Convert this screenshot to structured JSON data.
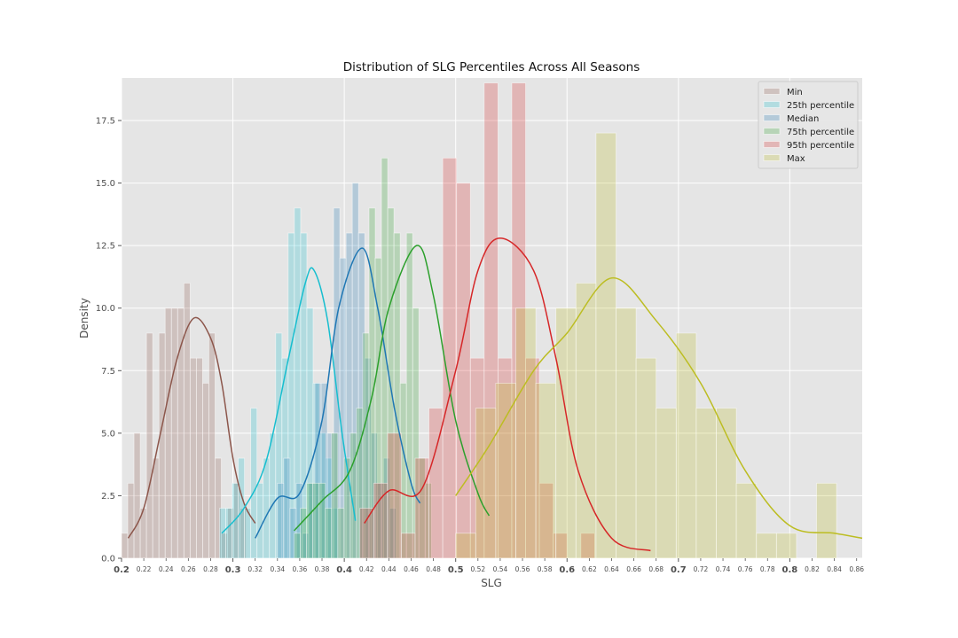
{
  "chart_data": {
    "type": "histogram",
    "title": "Distribution of SLG Percentiles Across All Seasons",
    "xlabel": "SLG",
    "ylabel": "Density",
    "xlim": [
      0.2,
      0.865
    ],
    "ylim": [
      0,
      19.2
    ],
    "grid": true,
    "legend_position": "top-right",
    "major_x_ticks": [
      {
        "value": 0.2,
        "label": "0.2"
      },
      {
        "value": 0.3,
        "label": "0.3"
      },
      {
        "value": 0.4,
        "label": "0.4"
      },
      {
        "value": 0.5,
        "label": "0.5"
      },
      {
        "value": 0.6,
        "label": "0.6"
      },
      {
        "value": 0.7,
        "label": "0.7"
      },
      {
        "value": 0.8,
        "label": "0.8"
      }
    ],
    "minor_x_ticks": [
      {
        "value": 0.22,
        "label": "0.22"
      },
      {
        "value": 0.24,
        "label": "0.24"
      },
      {
        "value": 0.26,
        "label": "0.26"
      },
      {
        "value": 0.28,
        "label": "0.28"
      },
      {
        "value": 0.32,
        "label": "0.32"
      },
      {
        "value": 0.34,
        "label": "0.34"
      },
      {
        "value": 0.36,
        "label": "0.36"
      },
      {
        "value": 0.38,
        "label": "0.38"
      },
      {
        "value": 0.42,
        "label": "0.42"
      },
      {
        "value": 0.44,
        "label": "0.44"
      },
      {
        "value": 0.46,
        "label": "0.46"
      },
      {
        "value": 0.48,
        "label": "0.48"
      },
      {
        "value": 0.52,
        "label": "0.52"
      },
      {
        "value": 0.54,
        "label": "0.54"
      },
      {
        "value": 0.56,
        "label": "0.56"
      },
      {
        "value": 0.58,
        "label": "0.58"
      },
      {
        "value": 0.62,
        "label": "0.62"
      },
      {
        "value": 0.64,
        "label": "0.64"
      },
      {
        "value": 0.66,
        "label": "0.66"
      },
      {
        "value": 0.68,
        "label": "0.68"
      },
      {
        "value": 0.72,
        "label": "0.72"
      },
      {
        "value": 0.74,
        "label": "0.74"
      },
      {
        "value": 0.76,
        "label": "0.76"
      },
      {
        "value": 0.78,
        "label": "0.78"
      },
      {
        "value": 0.82,
        "label": "0.82"
      },
      {
        "value": 0.84,
        "label": "0.84"
      },
      {
        "value": 0.86,
        "label": "0.86"
      }
    ],
    "y_ticks": [
      {
        "value": 0,
        "label": "0.0"
      },
      {
        "value": 2.5,
        "label": "2.5"
      },
      {
        "value": 5,
        "label": "5.0"
      },
      {
        "value": 7.5,
        "label": "7.5"
      },
      {
        "value": 10,
        "label": "10.0"
      },
      {
        "value": 12.5,
        "label": "12.5"
      },
      {
        "value": 15,
        "label": "15.0"
      },
      {
        "value": 17.5,
        "label": "17.5"
      }
    ],
    "series": [
      {
        "name": "Min",
        "color": "#8c564b",
        "bin_start": 0.2,
        "bin_width": 0.0056,
        "counts": [
          1,
          3,
          5,
          2,
          9,
          4,
          9,
          10,
          10,
          10,
          11,
          8,
          8,
          7,
          9,
          4,
          1,
          2,
          3,
          2
        ],
        "kde": [
          [
            0.206,
            0.8
          ],
          [
            0.22,
            2.0
          ],
          [
            0.235,
            5.0
          ],
          [
            0.25,
            8.0
          ],
          [
            0.265,
            9.6
          ],
          [
            0.28,
            8.8
          ],
          [
            0.29,
            7.0
          ],
          [
            0.3,
            4.0
          ],
          [
            0.31,
            2.2
          ],
          [
            0.32,
            1.4
          ]
        ]
      },
      {
        "name": "25th percentile",
        "color": "#17becf",
        "bin_start": 0.288,
        "bin_width": 0.0056,
        "counts": [
          2,
          2,
          3,
          4,
          2,
          6,
          3,
          4,
          5,
          9,
          8,
          13,
          14,
          13,
          10,
          7,
          5,
          4,
          2
        ],
        "kde": [
          [
            0.29,
            1.0
          ],
          [
            0.31,
            2.0
          ],
          [
            0.33,
            3.9
          ],
          [
            0.35,
            8.0
          ],
          [
            0.365,
            11.0
          ],
          [
            0.373,
            11.5
          ],
          [
            0.385,
            9.5
          ],
          [
            0.398,
            5.0
          ],
          [
            0.41,
            1.5
          ]
        ]
      },
      {
        "name": "Median",
        "color": "#1f77b4",
        "bin_start": 0.34,
        "bin_width": 0.0056,
        "counts": [
          3,
          4,
          2,
          3,
          1,
          3,
          7,
          7,
          5,
          14,
          12,
          13,
          15,
          13,
          8,
          5,
          3,
          4,
          2
        ],
        "kde": [
          [
            0.32,
            0.8
          ],
          [
            0.34,
            2.4
          ],
          [
            0.36,
            2.6
          ],
          [
            0.38,
            5.5
          ],
          [
            0.395,
            10.0
          ],
          [
            0.416,
            12.4
          ],
          [
            0.43,
            10.0
          ],
          [
            0.445,
            6.0
          ],
          [
            0.46,
            3.0
          ],
          [
            0.468,
            2.2
          ]
        ]
      },
      {
        "name": "75th percentile",
        "color": "#2ca02c",
        "bin_start": 0.355,
        "bin_width": 0.0056,
        "counts": [
          1,
          2,
          3,
          3,
          3,
          2,
          5,
          2,
          4,
          5,
          6,
          9,
          14,
          12,
          16,
          14,
          13,
          7,
          13,
          10,
          4,
          3
        ],
        "kde": [
          [
            0.355,
            1.1
          ],
          [
            0.38,
            2.3
          ],
          [
            0.405,
            3.5
          ],
          [
            0.425,
            6.5
          ],
          [
            0.44,
            10.0
          ],
          [
            0.465,
            12.5
          ],
          [
            0.48,
            10.5
          ],
          [
            0.5,
            5.5
          ],
          [
            0.52,
            2.6
          ],
          [
            0.53,
            1.7
          ]
        ]
      },
      {
        "name": "95th percentile",
        "color": "#d62728",
        "bin_start": 0.414,
        "bin_width": 0.0124,
        "counts": [
          2,
          3,
          5,
          1,
          4,
          6,
          16,
          15,
          8,
          19,
          8,
          19,
          8,
          3,
          1,
          0,
          1
        ],
        "kde": [
          [
            0.418,
            1.4
          ],
          [
            0.44,
            2.7
          ],
          [
            0.47,
            2.8
          ],
          [
            0.5,
            7.5
          ],
          [
            0.52,
            11.5
          ],
          [
            0.54,
            12.8
          ],
          [
            0.57,
            11.5
          ],
          [
            0.59,
            8.0
          ],
          [
            0.61,
            3.5
          ],
          [
            0.64,
            0.8
          ],
          [
            0.675,
            0.3
          ]
        ]
      },
      {
        "name": "Max",
        "color": "#bcbd22",
        "bin_start": 0.5,
        "bin_width": 0.018,
        "counts": [
          1,
          6,
          7,
          10,
          7,
          10,
          11,
          17,
          10,
          8,
          6,
          9,
          6,
          6,
          3,
          1,
          1,
          0,
          3
        ],
        "kde": [
          [
            0.5,
            2.5
          ],
          [
            0.53,
            4.5
          ],
          [
            0.57,
            7.5
          ],
          [
            0.6,
            9.0
          ],
          [
            0.64,
            11.2
          ],
          [
            0.68,
            9.5
          ],
          [
            0.72,
            7.0
          ],
          [
            0.76,
            3.5
          ],
          [
            0.8,
            1.3
          ],
          [
            0.84,
            1.0
          ],
          [
            0.865,
            0.8
          ]
        ]
      }
    ]
  }
}
